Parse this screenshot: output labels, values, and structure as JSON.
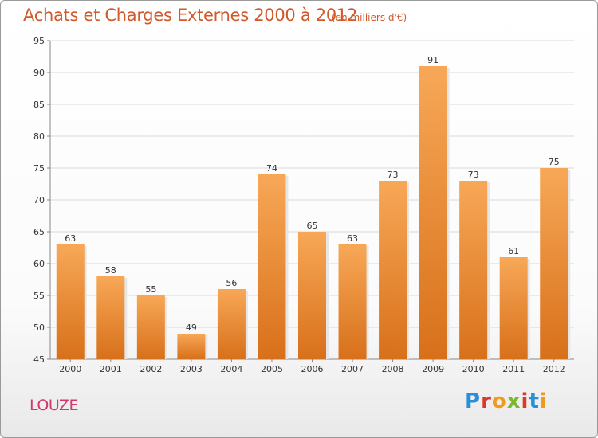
{
  "title": "Achats et Charges Externes 2000 à 2012",
  "subtitle": "(en milliers d'€)",
  "commune": "LOUZE",
  "logo": {
    "text": "Proxiti",
    "letters": [
      "P",
      "r",
      "o",
      "x",
      "i",
      "t",
      "i"
    ],
    "colors": [
      "#2a8fd6",
      "#d63a2a",
      "#f29a1d",
      "#7bb82c",
      "#d63a2a",
      "#2a8fd6",
      "#f29a1d"
    ]
  },
  "colors": {
    "bar": "#f0892e",
    "bar_light": "#f6a85a",
    "bar_dark": "#d8731c",
    "grid": "#d9d9d9",
    "axis": "#888888"
  },
  "chart_data": {
    "type": "bar",
    "title": "Achats et Charges Externes 2000 à 2012",
    "subtitle": "(en milliers d'€)",
    "categories": [
      "2000",
      "2001",
      "2002",
      "2003",
      "2004",
      "2005",
      "2006",
      "2007",
      "2008",
      "2009",
      "2010",
      "2011",
      "2012"
    ],
    "values": [
      63,
      58,
      55,
      49,
      56,
      74,
      65,
      63,
      73,
      91,
      73,
      61,
      75
    ],
    "ylim": [
      45,
      95
    ],
    "yticks": [
      45,
      50,
      55,
      60,
      65,
      70,
      75,
      80,
      85,
      90,
      95
    ],
    "grid": true,
    "xlabel": "",
    "ylabel": ""
  }
}
